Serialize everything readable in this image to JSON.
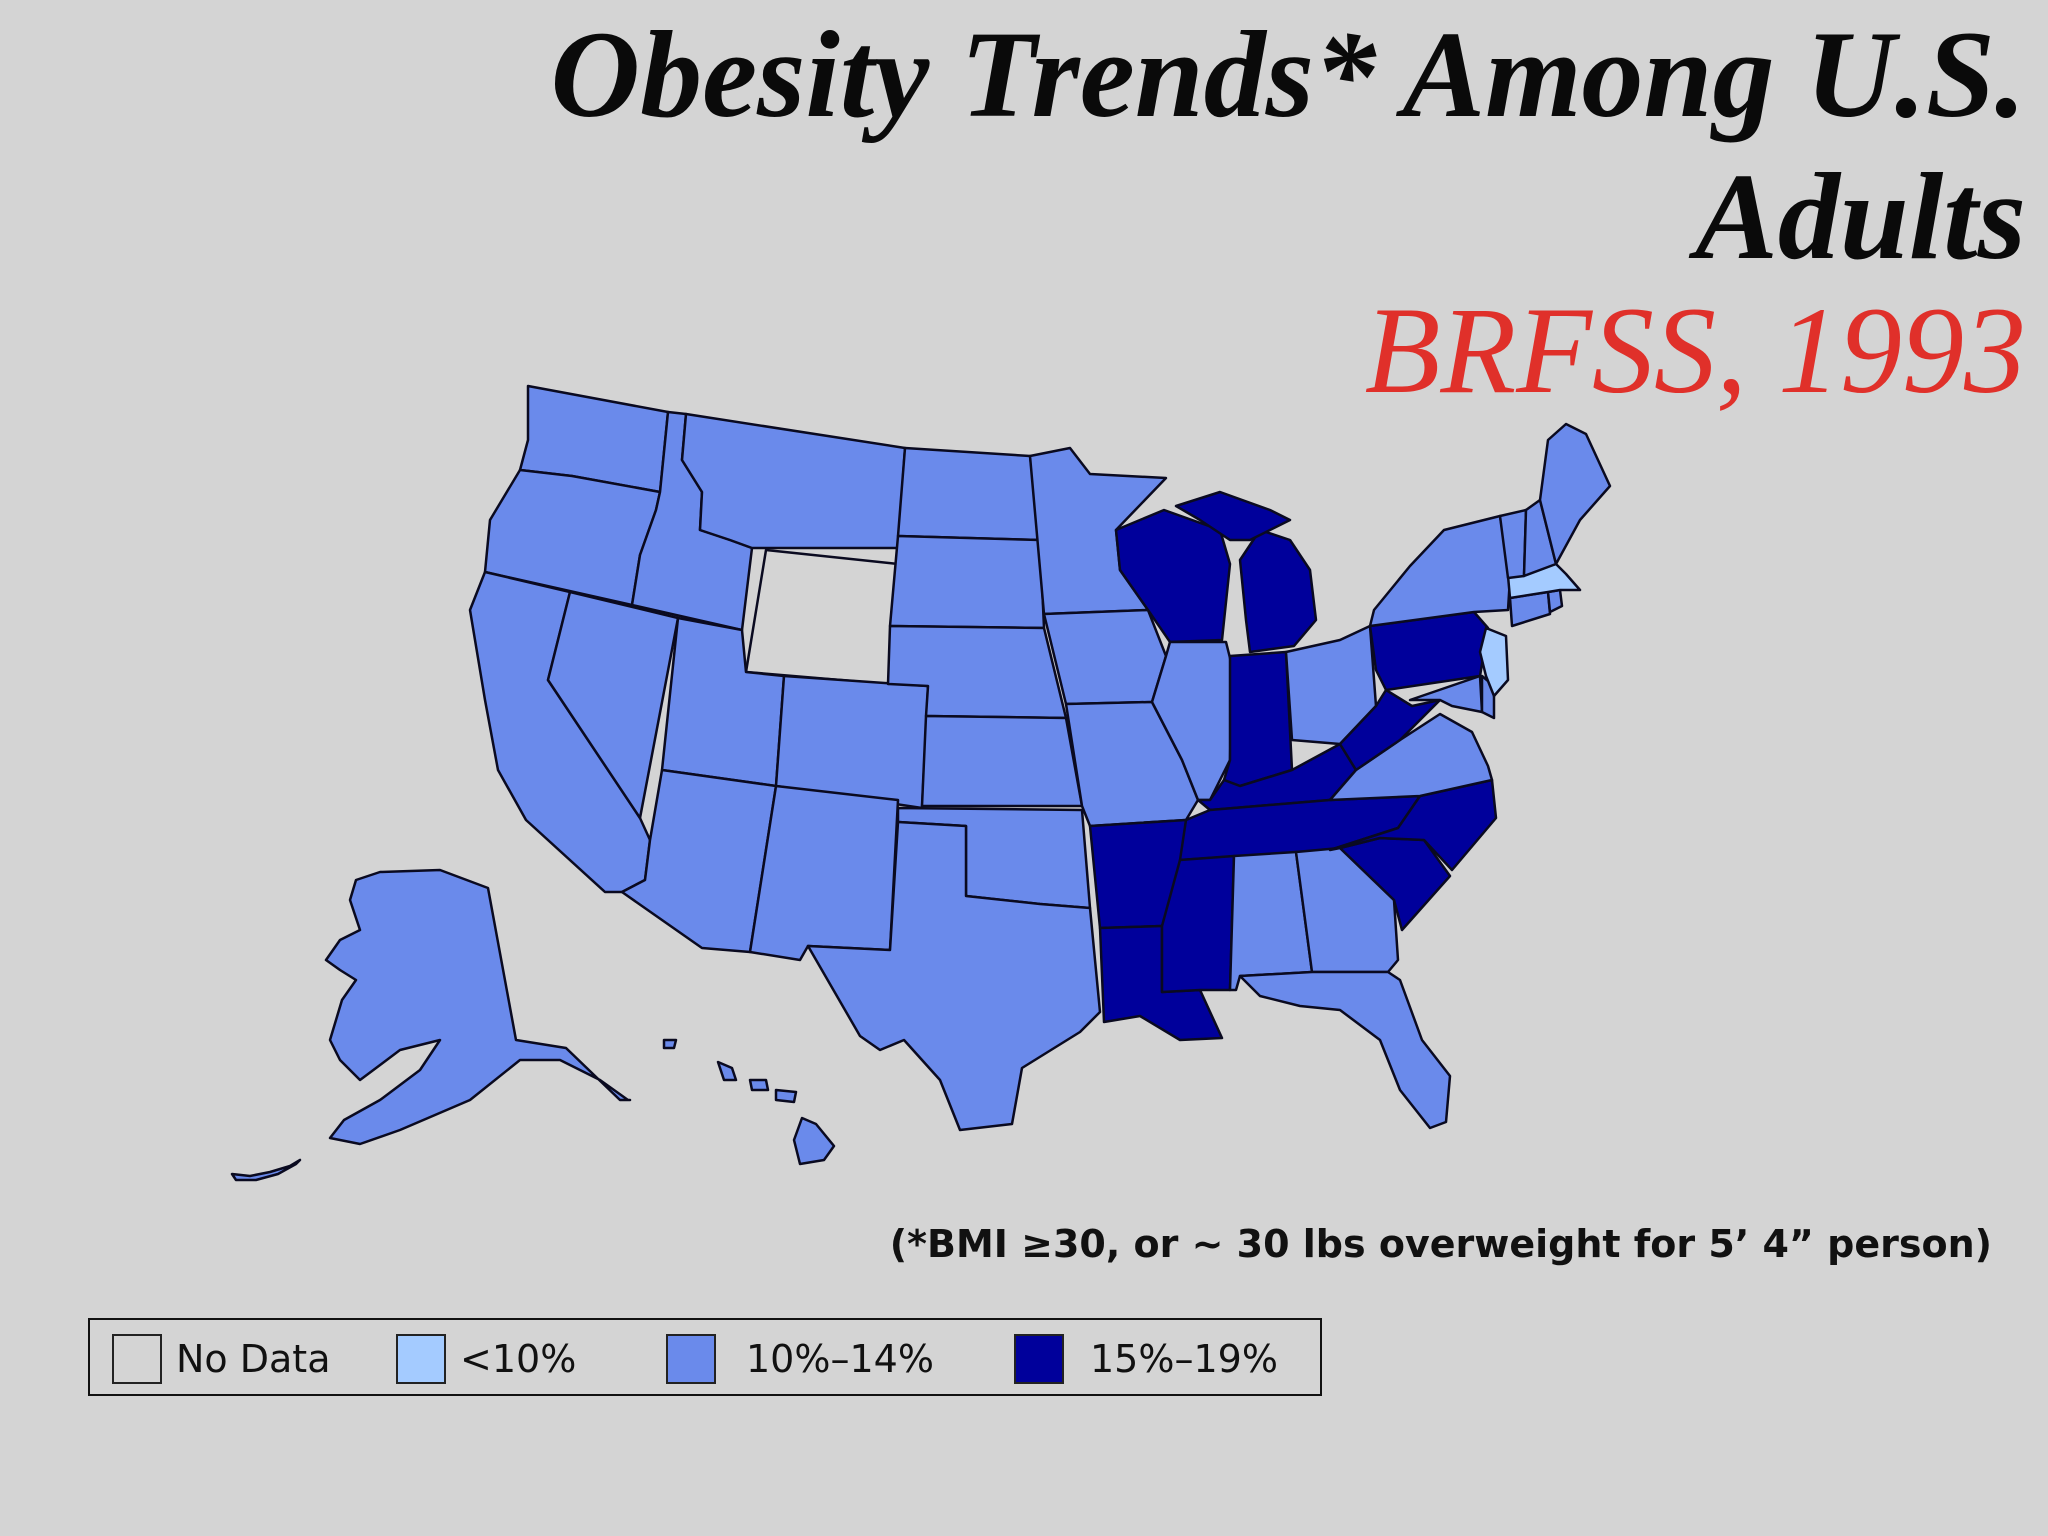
{
  "title": {
    "line1": "Obesity Trends* Among U.S.",
    "line2": "Adults"
  },
  "subtitle": "BRFSS, 1993",
  "footnote": "(*BMI ≥30, or ~ 30 lbs overweight for 5’ 4” person)",
  "legend": [
    {
      "label": "No Data",
      "color": "#d4d4d4"
    },
    {
      "label": "<10%",
      "color": "#a4cbff"
    },
    {
      "label": "10%–14%",
      "color": "#6a8aeb"
    },
    {
      "label": "15%–19%",
      "color": "#00009b"
    }
  ],
  "colors": {
    "no_data": "#d4d4d4",
    "lt10": "#a4cbff",
    "p10_14": "#6a8aeb",
    "p15_19": "#00009b",
    "title_text": "#0a0a0a",
    "subtitle_text": "#e0302a"
  },
  "states": {
    "Washington": "10%–14%",
    "Oregon": "10%–14%",
    "California": "10%–14%",
    "Idaho": "10%–14%",
    "Nevada": "10%–14%",
    "Montana": "10%–14%",
    "Wyoming": "No Data",
    "Utah": "10%–14%",
    "Arizona": "10%–14%",
    "Colorado": "10%–14%",
    "New Mexico": "10%–14%",
    "North Dakota": "10%–14%",
    "South Dakota": "10%–14%",
    "Nebraska": "10%–14%",
    "Kansas": "10%–14%",
    "Oklahoma": "10%–14%",
    "Texas": "10%–14%",
    "Minnesota": "10%–14%",
    "Iowa": "10%–14%",
    "Missouri": "10%–14%",
    "Arkansas": "15%–19%",
    "Louisiana": "15%–19%",
    "Wisconsin": "15%–19%",
    "Illinois": "10%–14%",
    "Michigan": "15%–19%",
    "Indiana": "15%–19%",
    "Ohio": "10%–14%",
    "Kentucky": "15%–19%",
    "Tennessee": "15%–19%",
    "Mississippi": "15%–19%",
    "Alabama": "10%–14%",
    "Georgia": "10%–14%",
    "Florida": "10%–14%",
    "South Carolina": "15%–19%",
    "North Carolina": "15%–19%",
    "Virginia": "10%–14%",
    "West Virginia": "15%–19%",
    "Pennsylvania": "15%–19%",
    "New York": "10%–14%",
    "Maryland": "10%–14%",
    "Delaware": "10%–14%",
    "New Jersey": "<10%",
    "Connecticut": "10%–14%",
    "Rhode Island": "10%–14%",
    "Massachusetts": "<10%",
    "Vermont": "10%–14%",
    "New Hampshire": "10%–14%",
    "Maine": "10%–14%",
    "Alaska": "10%–14%",
    "Hawaii": "10%–14%"
  }
}
